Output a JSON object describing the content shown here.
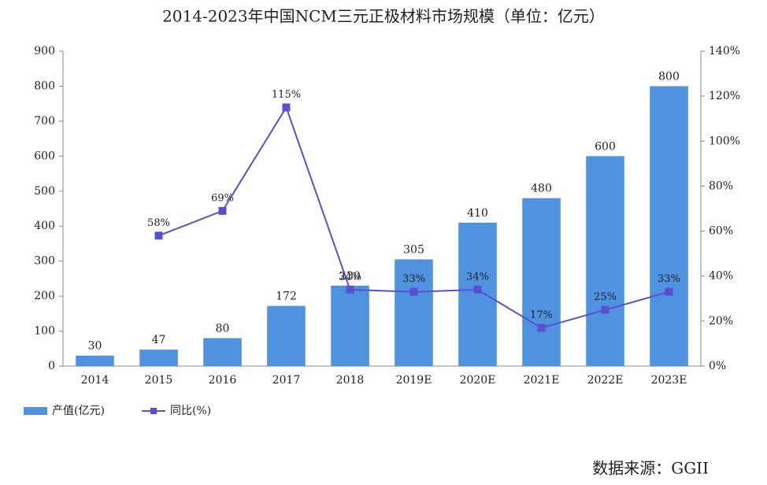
{
  "chart_data": {
    "type": "bar-line",
    "title": "2014-2023年中国NCM三元正极材料市场规模（单位：亿元）",
    "categories": [
      "2014",
      "2015",
      "2016",
      "2017",
      "2018",
      "2019E",
      "2020E",
      "2021E",
      "2022E",
      "2023E"
    ],
    "series": [
      {
        "name": "产值(亿元)",
        "color": "#4f93e0",
        "type": "bar",
        "values": [
          30,
          47,
          80,
          172,
          230,
          305,
          410,
          480,
          600,
          800
        ]
      },
      {
        "name": "同比(%)",
        "color": "#5a4fcf",
        "type": "line",
        "axis": "y2",
        "values": [
          null,
          58,
          69,
          115,
          34,
          33,
          34,
          17,
          25,
          33
        ],
        "value_labels": [
          null,
          "58%",
          "69%",
          "115%",
          "34%",
          "33%",
          "34%",
          "17%",
          "25%",
          "33%"
        ]
      }
    ],
    "ylim": [
      0,
      900
    ],
    "yticks": [
      0,
      100,
      200,
      300,
      400,
      500,
      600,
      700,
      800,
      900
    ],
    "y2lim": [
      0,
      140
    ],
    "y2ticks": [
      {
        "value": 0,
        "label": "0%"
      },
      {
        "value": 20,
        "label": "20%"
      },
      {
        "value": 40,
        "label": "40%"
      },
      {
        "value": 60,
        "label": "60%"
      },
      {
        "value": 80,
        "label": "80%"
      },
      {
        "value": 100,
        "label": "100%"
      },
      {
        "value": 120,
        "label": "120%"
      },
      {
        "value": 140,
        "label": "140%"
      }
    ],
    "legend": "bottom-left",
    "source": "数据来源：GGII"
  }
}
